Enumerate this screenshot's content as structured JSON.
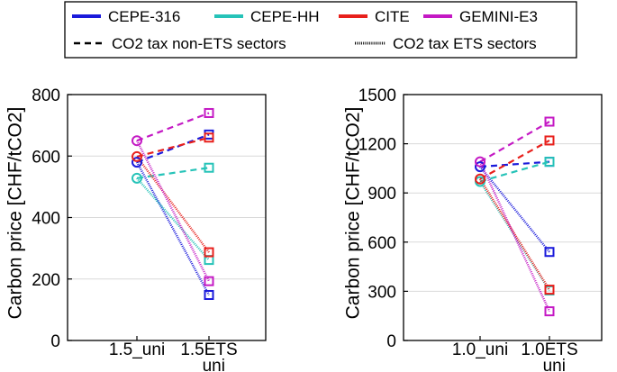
{
  "legend": {
    "models": [
      {
        "name": "CEPE-316",
        "color": "#1a1adb"
      },
      {
        "name": "CEPE-HH",
        "color": "#26c3b8"
      },
      {
        "name": "CITE",
        "color": "#e8201c"
      },
      {
        "name": "GEMINI-E3",
        "color": "#c419c4"
      }
    ],
    "line_styles": [
      {
        "label": "CO2 tax non-ETS sectors",
        "style": "dashed"
      },
      {
        "label": "CO2 tax ETS sectors",
        "style": "dotted"
      }
    ]
  },
  "chart_data": [
    {
      "type": "line",
      "title": "",
      "xlabel": "",
      "ylabel": "Carbon price [CHF/tCO2]",
      "ylim": [
        0,
        800
      ],
      "yticks": [
        0,
        200,
        400,
        600,
        800
      ],
      "categories": [
        "1.5_uni",
        "1.5ETS\n_uni"
      ],
      "category_lines": [
        [
          "1.5_uni"
        ],
        [
          "1.5ETS",
          "_uni"
        ]
      ],
      "series": [
        {
          "name": "CEPE-316",
          "start": 580,
          "non_ets": 670,
          "ets": 148
        },
        {
          "name": "CEPE-HH",
          "start": 528,
          "non_ets": 562,
          "ets": 262
        },
        {
          "name": "CITE",
          "start": 598,
          "non_ets": 660,
          "ets": 287
        },
        {
          "name": "GEMINI-E3",
          "start": 650,
          "non_ets": 740,
          "ets": 193
        }
      ]
    },
    {
      "type": "line",
      "title": "",
      "xlabel": "",
      "ylabel": "Carbon price [CHF/tCO2]",
      "ylim": [
        0,
        1500
      ],
      "yticks": [
        0,
        300,
        600,
        900,
        1200,
        1500
      ],
      "categories": [
        "1.0_uni",
        "1.0ETS\n_uni"
      ],
      "category_lines": [
        [
          "1.0_uni"
        ],
        [
          "1.0ETS",
          "_uni"
        ]
      ],
      "series": [
        {
          "name": "CEPE-316",
          "start": 1060,
          "non_ets": 1090,
          "ets": 540
        },
        {
          "name": "CEPE-HH",
          "start": 970,
          "non_ets": 1090,
          "ets": 305
        },
        {
          "name": "CITE",
          "start": 985,
          "non_ets": 1220,
          "ets": 310
        },
        {
          "name": "GEMINI-E3",
          "start": 1090,
          "non_ets": 1335,
          "ets": 178
        }
      ]
    }
  ]
}
